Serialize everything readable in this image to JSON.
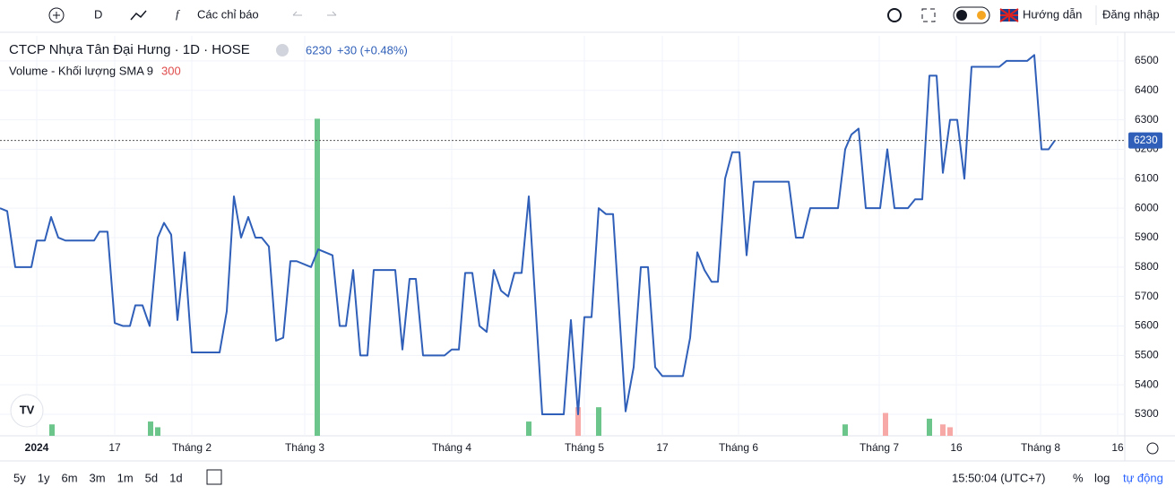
{
  "toolbar": {
    "interval": "D",
    "indicators": "Các chỉ báo",
    "help": "Hướng dẫn",
    "login": "Đăng nhập"
  },
  "legend": {
    "symbol": "CTCP Nhựa Tân Đại Hưng · 1D · HOSE",
    "last": "6230",
    "change": "+30 (+0.48%)",
    "volume": "Volume - Khối lượng SMA 9",
    "volume_sma": "300"
  },
  "bottom": {
    "ranges": [
      "5y",
      "1y",
      "6m",
      "3m",
      "1m",
      "5d",
      "1d"
    ],
    "time": "15:50:04 (UTC+7)",
    "percent": "%",
    "log": "log",
    "auto": "tự động"
  },
  "chart_data": {
    "type": "line",
    "series": [
      {
        "name": "CTCP Nhựa Tân Đại Hưng",
        "color": "#2f5fb8",
        "x": [
          0,
          8,
          17,
          35,
          41,
          50,
          57,
          65,
          73,
          105,
          111,
          120,
          128,
          137,
          145,
          151,
          159,
          167,
          176,
          183,
          191,
          198,
          206,
          214,
          245,
          253,
          261,
          269,
          277,
          285,
          292,
          300,
          308,
          316,
          324,
          331,
          347,
          355,
          371,
          379,
          386,
          394,
          402,
          410,
          417,
          441,
          449,
          457,
          464,
          472,
          496,
          504,
          512,
          519,
          527,
          535,
          543,
          551,
          559,
          567,
          574,
          582,
          590,
          605,
          629,
          637,
          645,
          652,
          660,
          668,
          676,
          684,
          698,
          707,
          715,
          723,
          731,
          739,
          762,
          770,
          778,
          786,
          794,
          801,
          809,
          817,
          825,
          833,
          841,
          880,
          888,
          896,
          904,
          935,
          943,
          950,
          958,
          966,
          982,
          990,
          998,
          1013,
          1021,
          1029,
          1037,
          1045,
          1052,
          1060,
          1068,
          1076,
          1084,
          1115,
          1123,
          1146,
          1154,
          1162,
          1170,
          1177
        ],
        "values": [
          6000,
          5990,
          5800,
          5800,
          5890,
          5890,
          5970,
          5900,
          5890,
          5890,
          5920,
          5920,
          5610,
          5600,
          5600,
          5670,
          5670,
          5600,
          5900,
          5950,
          5910,
          5620,
          5850,
          5510,
          5510,
          5650,
          6040,
          5900,
          5970,
          5900,
          5900,
          5870,
          5550,
          5560,
          5820,
          5820,
          5800,
          5860,
          5840,
          5600,
          5600,
          5790,
          5500,
          5500,
          5790,
          5790,
          5520,
          5760,
          5760,
          5500,
          5500,
          5520,
          5520,
          5780,
          5780,
          5600,
          5580,
          5790,
          5720,
          5700,
          5780,
          5780,
          6040,
          5300,
          5300,
          5620,
          5300,
          5630,
          5630,
          6000,
          5980,
          5980,
          5310,
          5460,
          5800,
          5800,
          5460,
          5430,
          5430,
          5560,
          5850,
          5790,
          5750,
          5750,
          6100,
          6190,
          6190,
          5840,
          6090,
          6090,
          5900,
          5900,
          6000,
          6000,
          6200,
          6250,
          6270,
          6000,
          6000,
          6200,
          6000,
          6000,
          6030,
          6030,
          6450,
          6450,
          6120,
          6300,
          6300,
          6100,
          6480,
          6480,
          6500,
          6500,
          6520,
          6200,
          6200,
          6230
        ]
      }
    ],
    "volume": {
      "x": [
        58,
        168,
        176,
        354,
        590,
        645,
        668,
        943,
        988,
        1037,
        1052,
        1060
      ],
      "values": [
        4,
        5,
        3,
        111,
        5,
        10,
        10,
        4,
        8,
        6,
        4,
        3
      ],
      "colors": [
        "#6cc58a",
        "#6cc58a",
        "#6cc58a",
        "#6cc58a",
        "#6cc58a",
        "#f7a9a7",
        "#6cc58a",
        "#6cc58a",
        "#f7a9a7",
        "#6cc58a",
        "#f7a9a7",
        "#f7a9a7"
      ],
      "ylim": [
        0,
        140
      ]
    },
    "last_price": 6230,
    "xlim": [
      0,
      1255
    ],
    "ylim": [
      5227,
      6585
    ],
    "xticks": [
      {
        "value": 41,
        "label": "2024"
      },
      {
        "value": 128,
        "label": "17"
      },
      {
        "value": 214,
        "label": "Tháng 2"
      },
      {
        "value": 340,
        "label": "Tháng 3"
      },
      {
        "value": 504,
        "label": "Tháng 4"
      },
      {
        "value": 652,
        "label": "Tháng 5"
      },
      {
        "value": 739,
        "label": "17"
      },
      {
        "value": 824,
        "label": "Tháng 6"
      },
      {
        "value": 981,
        "label": "Tháng 7"
      },
      {
        "value": 1067,
        "label": "16"
      },
      {
        "value": 1161,
        "label": "Tháng 8"
      },
      {
        "value": 1247,
        "label": "16"
      }
    ],
    "yticks": [
      5300,
      5400,
      5500,
      5600,
      5700,
      5800,
      5900,
      6000,
      6100,
      6200,
      6300,
      6400,
      6500
    ],
    "grid": true
  }
}
